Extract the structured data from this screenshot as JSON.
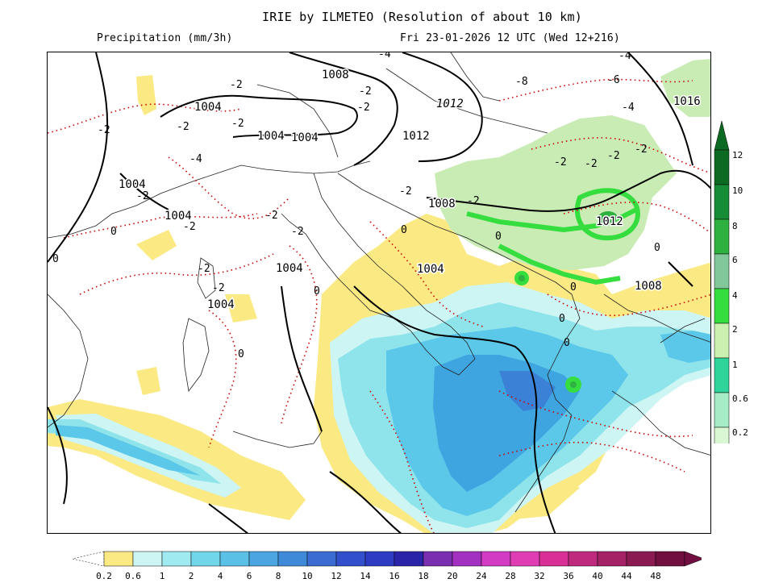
{
  "header": {
    "title": "IRIE by ILMETEO (Resolution of about 10 km)",
    "variable": "Precipitation (mm/3h)",
    "valid_time": "Fri 23-01-2026 12 UTC (Wed 12+216)"
  },
  "colors": {
    "yellow": "#fbe983",
    "light_cyan": "#cdf5f3",
    "cyan": "#8ee4ea",
    "sky": "#5bc8ea",
    "blue": "#3fa5e0",
    "mid_blue": "#3b82d6",
    "light_green": "#c8ecb4",
    "green": "#3ad13f",
    "isobar": "#000000",
    "isotherm": "#cc0000"
  },
  "vertical_scale": {
    "labels": [
      "12",
      "10",
      "8",
      "6",
      "4",
      "2",
      "1",
      "0.6",
      "0.2"
    ],
    "colors": [
      "#0c6a23",
      "#178c36",
      "#2fb13f",
      "#82c79a",
      "#36dd3f",
      "#cbf1b1",
      "#2fd49a",
      "#a5ecc6",
      "#daf7d3"
    ]
  },
  "horizontal_scale": {
    "labels": [
      "0.2",
      "0.6",
      "1",
      "2",
      "4",
      "6",
      "8",
      "10",
      "12",
      "14",
      "16",
      "18",
      "20",
      "24",
      "28",
      "32",
      "36",
      "40",
      "44",
      "48"
    ],
    "colors": [
      "#fbe983",
      "#cdf5f3",
      "#9eeaf0",
      "#72d6ea",
      "#5ac0e6",
      "#4aa5e0",
      "#3f8ad8",
      "#3a6cd2",
      "#3350cc",
      "#2e3cc4",
      "#2a24a8",
      "#7a2fb0",
      "#a230c0",
      "#d23cc4",
      "#e03cb4",
      "#d83094",
      "#c02a7e",
      "#a62266",
      "#8a1a52",
      "#700f40"
    ]
  },
  "map_labels": {
    "isobars": [
      "1008",
      "1004",
      "1004",
      "1004",
      "1012",
      "1012",
      "1004",
      "1004",
      "1004",
      "1008",
      "1004",
      "1004",
      "1012",
      "1008",
      "1016"
    ],
    "isotherms": [
      "-2",
      "-2",
      "-2",
      "-2",
      "-2",
      "-4",
      "-2",
      "-2",
      "-2",
      "-2",
      "-2",
      "0",
      "-2",
      "-2",
      "-2",
      "0",
      "0",
      "-2",
      "0",
      "0",
      "0",
      "0",
      "0",
      "0",
      "-4",
      "-6",
      "-8",
      "-4",
      "-2",
      "-2",
      "-2",
      "-2",
      "-4",
      "0"
    ]
  }
}
